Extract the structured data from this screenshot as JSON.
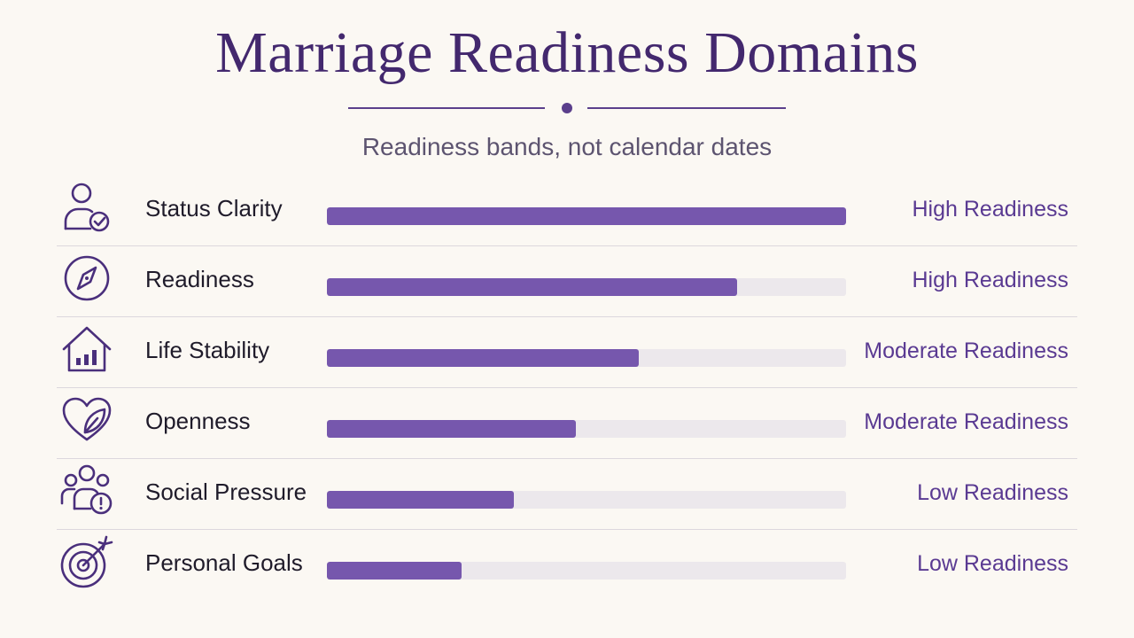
{
  "header": {
    "title": "Marriage Readiness Domains",
    "subtitle": "Readiness bands, not calendar dates"
  },
  "colors": {
    "title": "#43286e",
    "bar_fill": "#7657ad",
    "bar_track": "#ece8ec",
    "band_text": "#5a3a92",
    "background": "#fbf8f3"
  },
  "chart_data": {
    "type": "bar",
    "orientation": "horizontal",
    "title": "Marriage Readiness Domains",
    "subtitle": "Readiness bands, not calendar dates",
    "xlim": [
      0,
      100
    ],
    "grid": false,
    "categories": [
      "Status Clarity",
      "Readiness",
      "Life Stability",
      "Openness",
      "Social Pressure",
      "Personal Goals"
    ],
    "values": [
      100,
      79,
      60,
      48,
      36,
      26
    ],
    "bands": [
      "High Readiness",
      "High Readiness",
      "Moderate Readiness",
      "Moderate Readiness",
      "Low Readiness",
      "Low Readiness"
    ],
    "icons": [
      "person-check-icon",
      "compass-icon",
      "house-chart-icon",
      "heart-leaf-icon",
      "group-alert-icon",
      "target-arrow-icon"
    ]
  }
}
